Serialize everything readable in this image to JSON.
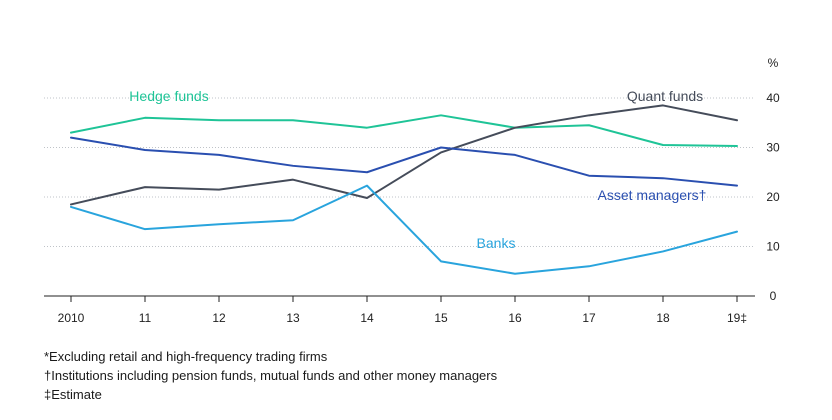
{
  "chart_data": {
    "type": "line",
    "categories": [
      "2010",
      "11",
      "12",
      "13",
      "14",
      "15",
      "16",
      "17",
      "18",
      "19‡"
    ],
    "ylim": [
      0,
      40
    ],
    "yticks": [
      0,
      10,
      20,
      30,
      40
    ],
    "yunit": "%",
    "grid": true,
    "series": [
      {
        "name": "Hedge funds",
        "color": "#1fc497",
        "values": [
          33,
          36,
          35.5,
          35.5,
          34,
          36.5,
          34,
          34.5,
          30.5,
          30.3
        ]
      },
      {
        "name": "Quant funds",
        "color": "#454c5a",
        "values": [
          18.5,
          22,
          21.5,
          23.5,
          19.8,
          29,
          34,
          36.5,
          38.5,
          35.5
        ]
      },
      {
        "name": "Asset managers†",
        "color": "#2a4fb0",
        "values": [
          32,
          29.5,
          28.5,
          26.3,
          25,
          30,
          28.5,
          24.3,
          23.8,
          22.3
        ]
      },
      {
        "name": "Banks",
        "color": "#29a4dd",
        "values": [
          18,
          13.5,
          14.5,
          15.3,
          22.3,
          7,
          4.5,
          6,
          9,
          13
        ]
      }
    ]
  },
  "footnotes": [
    "*Excluding retail and high-frequency trading firms",
    "†Institutions including pension funds, mutual funds and other money managers",
    "‡Estimate"
  ]
}
